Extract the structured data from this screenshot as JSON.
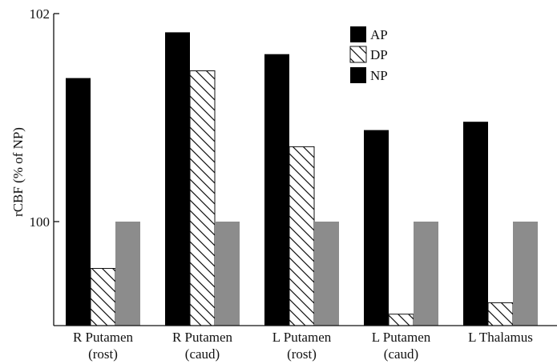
{
  "chart_data": {
    "type": "bar",
    "title": "",
    "xlabel": "",
    "ylabel": "rCBF (% of NP)",
    "ylim": [
      99.0,
      102.0
    ],
    "yticks": [
      100,
      102
    ],
    "categories": [
      [
        "R Putamen",
        "(rost)"
      ],
      [
        "R Putamen",
        "(caud)"
      ],
      [
        "L Putamen",
        "(rost)"
      ],
      [
        "L Putamen",
        "(caud)"
      ],
      [
        "L Thalamus"
      ]
    ],
    "series": [
      {
        "name": "AP",
        "values": [
          101.38,
          101.82,
          101.61,
          100.88,
          100.96
        ],
        "color": "#000000",
        "pattern": "solid"
      },
      {
        "name": "DP",
        "values": [
          99.55,
          101.45,
          100.72,
          99.11,
          99.22
        ],
        "color": "#ffffff",
        "pattern": "diagonal-hatch"
      },
      {
        "name": "NP",
        "values": [
          100.0,
          100.0,
          100.0,
          100.0,
          100.0
        ],
        "color": "#8c8c8c",
        "pattern": "solid"
      }
    ],
    "legend": {
      "position": "top-right",
      "colors": [
        "#000000",
        "hatch",
        "#000000"
      ]
    },
    "grid": false
  }
}
